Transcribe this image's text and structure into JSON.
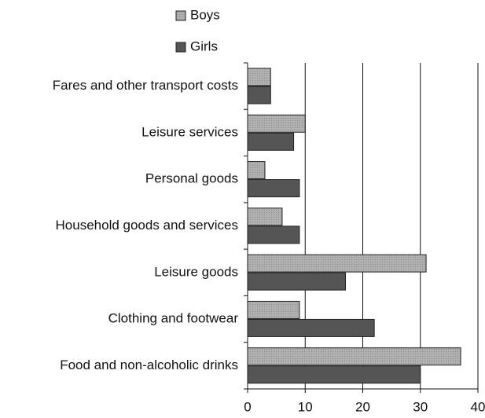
{
  "chart_data": {
    "type": "hbar",
    "categories": [
      "Fares and other transport costs",
      "Leisure services",
      "Personal goods",
      "Household goods and services",
      "Leisure goods",
      "Clothing and footwear",
      "Food and non-alcoholic drinks"
    ],
    "series": [
      {
        "name": "Boys",
        "color": "#a9a9a9",
        "values": [
          4,
          10,
          3,
          6,
          31,
          9,
          37
        ]
      },
      {
        "name": "Girls",
        "color": "#555555",
        "values": [
          4,
          8,
          9,
          9,
          17,
          22,
          30
        ]
      }
    ],
    "xlim": [
      0,
      40
    ],
    "xticks": [
      0,
      10,
      20,
      30,
      40
    ],
    "grid": true
  }
}
